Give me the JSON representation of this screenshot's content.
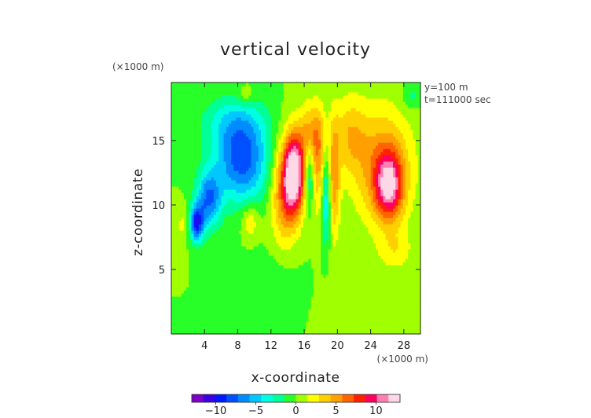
{
  "chart_data": {
    "type": "heatmap",
    "title": "vertical velocity",
    "xlabel": "x-coordinate",
    "ylabel": "z-coordinate",
    "x_unit": "(×1000 m)",
    "y_unit": "(×1000 m)",
    "annotations": [
      "y=100 m",
      "t=111000 sec"
    ],
    "xlim": [
      0,
      30
    ],
    "ylim": [
      0,
      19.5
    ],
    "x_ticks": [
      4,
      8,
      12,
      16,
      20,
      24,
      28
    ],
    "x_tick_labels": [
      "4",
      "8",
      "12",
      "16",
      "20",
      "24",
      "28"
    ],
    "y_ticks": [
      5,
      10,
      15
    ],
    "y_tick_labels": [
      "5",
      "10",
      "15"
    ],
    "colorbar": {
      "range": [
        -13,
        13
      ],
      "ticks": [
        -10,
        -5,
        0,
        5,
        10
      ],
      "tick_labels": [
        "−10",
        "−5",
        "0",
        "5",
        "10"
      ],
      "colors": [
        "#7b00c8",
        "#3a00e0",
        "#0018ff",
        "#0050ff",
        "#008cff",
        "#00c8ff",
        "#00ffe0",
        "#00ff96",
        "#28ff28",
        "#a0ff00",
        "#ffff00",
        "#ffd000",
        "#ffa000",
        "#ff6400",
        "#ff2000",
        "#ff0060",
        "#ff80b0",
        "#ffd8e8"
      ]
    },
    "grid": false,
    "features": [
      {
        "x": 8.5,
        "z": 13.5,
        "amp": -8,
        "sx": 3.2,
        "sz": 3.2
      },
      {
        "x": 4.5,
        "z": 10.5,
        "amp": -7,
        "sx": 1.5,
        "sz": 2.2
      },
      {
        "x": 3.0,
        "z": 8.6,
        "amp": -9,
        "sx": 0.9,
        "sz": 1.4
      },
      {
        "x": 7.5,
        "z": 16.5,
        "amp": -3,
        "sx": 4,
        "sz": 2
      },
      {
        "x": 14.8,
        "z": 12.5,
        "amp": 13,
        "sx": 1.2,
        "sz": 3
      },
      {
        "x": 13.6,
        "z": 11,
        "amp": 6,
        "sx": 1.6,
        "sz": 3.8
      },
      {
        "x": 16.8,
        "z": 15.5,
        "amp": 5,
        "sx": 1.4,
        "sz": 2.5
      },
      {
        "x": 17.8,
        "z": 13,
        "amp": 4,
        "sx": 0.7,
        "sz": 4
      },
      {
        "x": 19.6,
        "z": 12,
        "amp": 5,
        "sx": 0.7,
        "sz": 4.5
      },
      {
        "x": 18.6,
        "z": 10.5,
        "amp": -5,
        "sx": 0.55,
        "sz": 3.5
      },
      {
        "x": 16.6,
        "z": 12.5,
        "amp": -4,
        "sx": 0.45,
        "sz": 2.5
      },
      {
        "x": 26.2,
        "z": 11.5,
        "amp": 9,
        "sx": 1.6,
        "sz": 2.5
      },
      {
        "x": 25.5,
        "z": 13,
        "amp": 5.5,
        "sx": 3.5,
        "sz": 4.5
      },
      {
        "x": 21.5,
        "z": 15.5,
        "amp": 3.5,
        "sx": 2,
        "sz": 3
      },
      {
        "x": 9.5,
        "z": 8.8,
        "amp": 3,
        "sx": 1,
        "sz": 1.3
      },
      {
        "x": 1.5,
        "z": 8.5,
        "amp": 2,
        "sx": 1,
        "sz": 1.5
      },
      {
        "x": 12,
        "z": 4,
        "amp": -1.2,
        "sx": 3,
        "sz": 2
      },
      {
        "x": 22,
        "z": 3,
        "amp": 1,
        "sx": 3,
        "sz": 2.5
      },
      {
        "x": 27,
        "z": 6.5,
        "amp": 2.2,
        "sx": 2,
        "sz": 1.5
      },
      {
        "x": 9,
        "z": 18.5,
        "amp": 2,
        "sx": 1,
        "sz": 0.8
      },
      {
        "x": 29,
        "z": 18.5,
        "amp": -2,
        "sx": 1.2,
        "sz": 1
      }
    ]
  }
}
